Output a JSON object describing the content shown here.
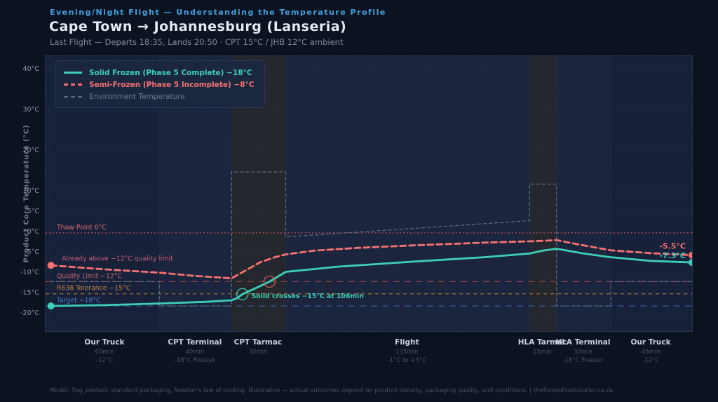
{
  "header": {
    "eyebrow": "Evening/Night Flight — Understanding the Temperature Profile",
    "title": "Cape Town → Johannesburg (Lanseria)",
    "subtitle": "Last Flight — Departs 18:35, Lands 20:50 · CPT 15°C / JHB 12°C ambient"
  },
  "footer": {
    "note": "Model: 5kg product, standard packaging, Newton's law of cooling. Illustrative — actual outcomes depend on product density, packaging quality, and conditions. | thefrozenfoodcourier.co.za"
  },
  "chart_data": {
    "type": "line",
    "ylabel": "Product Core Temperature (°C)",
    "y_ticks": [
      40,
      30,
      20,
      10,
      5,
      0,
      -5,
      -10,
      -15,
      -20
    ],
    "y_domain": [
      43.5,
      -24.2
    ],
    "t_domain": [
      -3,
      355
    ],
    "grid": true,
    "legend_position": "top-left",
    "segments": [
      {
        "name": "Our Truck",
        "duration": "60min",
        "detail": "-12°C",
        "start": 0,
        "end": 60,
        "shaded": false,
        "alt": false
      },
      {
        "name": "CPT Terminal",
        "duration": "40min",
        "detail": "-18°C Freezer",
        "start": 60,
        "end": 100,
        "shaded": false,
        "alt": true
      },
      {
        "name": "CPT Tarmac",
        "duration": "30min",
        "detail": "",
        "start": 100,
        "end": 130,
        "shaded": true,
        "alt": false
      },
      {
        "name": "Flight",
        "duration": "135min",
        "detail": "-1°C to +3°C",
        "start": 130,
        "end": 265,
        "shaded": false,
        "alt": true
      },
      {
        "name": "HLA Tarmac",
        "duration": "15min",
        "detail": "",
        "start": 265,
        "end": 280,
        "shaded": true,
        "alt": false
      },
      {
        "name": "HLA Terminal",
        "duration": "30min",
        "detail": "-18°C Freezer",
        "start": 280,
        "end": 310,
        "shaded": false,
        "alt": true
      },
      {
        "name": "Our Truck",
        "duration": "45min",
        "detail": "-12°C",
        "start": 310,
        "end": 355,
        "shaded": false,
        "alt": false
      }
    ],
    "series": [
      {
        "name": "Environment Temperature",
        "color": "#5d6b80",
        "style": "dashed-small",
        "bold_legend": false,
        "points": [
          [
            0,
            -12
          ],
          [
            60,
            -12
          ],
          [
            60,
            -18
          ],
          [
            100,
            -18
          ],
          [
            100,
            15
          ],
          [
            130,
            15
          ],
          [
            130,
            -1
          ],
          [
            265,
            3
          ],
          [
            265,
            12
          ],
          [
            280,
            12
          ],
          [
            280,
            -18
          ],
          [
            310,
            -18
          ],
          [
            310,
            -12
          ],
          [
            355,
            -12
          ]
        ]
      },
      {
        "name": "Semi-Frozen (Phase 5 Incomplete) −8°C",
        "color": "#f47272",
        "style": "dashed",
        "bold_legend": true,
        "end_label": "-5.5°C",
        "end_label_dy": -9,
        "points": [
          [
            0,
            -8
          ],
          [
            30,
            -9.0
          ],
          [
            60,
            -9.8
          ],
          [
            80,
            -10.6
          ],
          [
            100,
            -11.2
          ],
          [
            108,
            -9.2
          ],
          [
            116,
            -7.2
          ],
          [
            124,
            -6.0
          ],
          [
            130,
            -5.3
          ],
          [
            145,
            -4.4
          ],
          [
            170,
            -3.7
          ],
          [
            200,
            -3.1
          ],
          [
            240,
            -2.4
          ],
          [
            265,
            -2.1
          ],
          [
            280,
            -1.8
          ],
          [
            295,
            -3.1
          ],
          [
            310,
            -4.3
          ],
          [
            332,
            -5.0
          ],
          [
            355,
            -5.5
          ]
        ]
      },
      {
        "name": "Solid Frozen (Phase 5 Complete) −18°C",
        "color": "#3ecfb9",
        "style": "solid",
        "bold_legend": true,
        "end_label": "-7.3°C",
        "end_label_dy": -6,
        "points": [
          [
            0,
            -18
          ],
          [
            30,
            -17.8
          ],
          [
            60,
            -17.4
          ],
          [
            85,
            -17.0
          ],
          [
            100,
            -16.6
          ],
          [
            103,
            -16.1
          ],
          [
            106,
            -15.1
          ],
          [
            113,
            -13.7
          ],
          [
            121,
            -12.0
          ],
          [
            130,
            -9.6
          ],
          [
            160,
            -8.3
          ],
          [
            200,
            -7.1
          ],
          [
            240,
            -6.0
          ],
          [
            265,
            -5.1
          ],
          [
            272,
            -4.4
          ],
          [
            280,
            -3.9
          ],
          [
            295,
            -5.1
          ],
          [
            310,
            -6.0
          ],
          [
            332,
            -6.9
          ],
          [
            355,
            -7.3
          ]
        ]
      }
    ],
    "legend_order": [
      2,
      1,
      0
    ],
    "reference_lines": [
      {
        "label": "Thaw Point 0°C",
        "value": 0,
        "color": "#cf5555",
        "text_color": "#dd6b6b",
        "style": "dotted"
      },
      {
        "label": "Quality Limit −12°C",
        "value": -12,
        "color": "#9c4343",
        "text_color": "#c96a6a",
        "style": "dashed"
      },
      {
        "label": "R638 Tolerance −15°C",
        "value": -15,
        "color": "#9c6c2c",
        "text_color": "#bd8440",
        "style": "dashed-mid"
      },
      {
        "label": "Target −18°C",
        "value": -18,
        "color": "#35609f",
        "text_color": "#4a7cc8",
        "style": "dashed"
      }
    ],
    "annotations": [
      {
        "text": "Already above −12°C quality limit",
        "t": 6,
        "value": -6.3,
        "color": "#c0607a",
        "bold": false
      },
      {
        "text": "Solid crosses −15°C at 106min",
        "t": 111,
        "value": -15.6,
        "color": "#3ecfb9",
        "bold": true
      }
    ],
    "markers": [
      {
        "t": 106,
        "value": -15.1,
        "color": "#3ecfb9"
      },
      {
        "t": 121,
        "value": -12.0,
        "color": "#e05c5c"
      }
    ]
  }
}
